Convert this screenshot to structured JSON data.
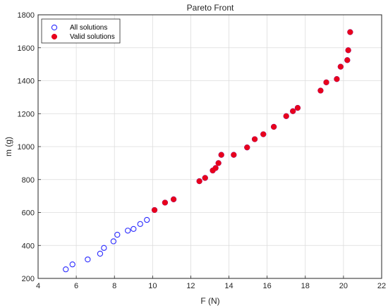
{
  "chart_data": {
    "type": "scatter",
    "title": "Pareto Front",
    "xlabel": "F (N)",
    "ylabel": "m (g)",
    "xlim": [
      4,
      22
    ],
    "ylim": [
      200,
      1800
    ],
    "xticks": [
      4,
      6,
      8,
      10,
      12,
      14,
      16,
      18,
      20,
      22
    ],
    "yticks": [
      200,
      400,
      600,
      800,
      1000,
      1200,
      1400,
      1600,
      1800
    ],
    "grid": true,
    "legend_position": "top-left",
    "series": [
      {
        "name": "All solutions",
        "marker": "open-circle",
        "color": "#2a2aff",
        "points": [
          [
            5.45,
            255
          ],
          [
            5.8,
            285
          ],
          [
            6.6,
            315
          ],
          [
            7.25,
            350
          ],
          [
            7.45,
            385
          ],
          [
            7.95,
            425
          ],
          [
            8.15,
            465
          ],
          [
            8.7,
            490
          ],
          [
            9.0,
            500
          ],
          [
            9.35,
            530
          ],
          [
            9.7,
            555
          ],
          [
            10.1,
            615
          ],
          [
            10.65,
            660
          ],
          [
            11.1,
            680
          ],
          [
            12.45,
            790
          ],
          [
            12.75,
            810
          ],
          [
            13.15,
            855
          ],
          [
            13.3,
            870
          ],
          [
            13.45,
            900
          ],
          [
            13.6,
            950
          ],
          [
            14.25,
            950
          ],
          [
            14.95,
            995
          ],
          [
            15.35,
            1045
          ],
          [
            15.8,
            1075
          ],
          [
            16.35,
            1120
          ],
          [
            17.0,
            1185
          ],
          [
            17.35,
            1215
          ],
          [
            17.6,
            1235
          ],
          [
            18.8,
            1340
          ],
          [
            19.1,
            1390
          ],
          [
            19.65,
            1410
          ],
          [
            19.85,
            1485
          ],
          [
            20.2,
            1525
          ],
          [
            20.25,
            1585
          ],
          [
            20.35,
            1695
          ]
        ]
      },
      {
        "name": "Valid solutions",
        "marker": "filled-circle",
        "color": "#e8001c",
        "points": [
          [
            10.1,
            615
          ],
          [
            10.65,
            660
          ],
          [
            11.1,
            680
          ],
          [
            12.45,
            790
          ],
          [
            12.75,
            810
          ],
          [
            13.15,
            855
          ],
          [
            13.3,
            870
          ],
          [
            13.45,
            900
          ],
          [
            13.6,
            950
          ],
          [
            14.25,
            950
          ],
          [
            14.95,
            995
          ],
          [
            15.35,
            1045
          ],
          [
            15.8,
            1075
          ],
          [
            16.35,
            1120
          ],
          [
            17.0,
            1185
          ],
          [
            17.35,
            1215
          ],
          [
            17.6,
            1235
          ],
          [
            18.8,
            1340
          ],
          [
            19.1,
            1390
          ],
          [
            19.65,
            1410
          ],
          [
            19.85,
            1485
          ],
          [
            20.2,
            1525
          ],
          [
            20.25,
            1585
          ],
          [
            20.35,
            1695
          ]
        ]
      }
    ]
  }
}
